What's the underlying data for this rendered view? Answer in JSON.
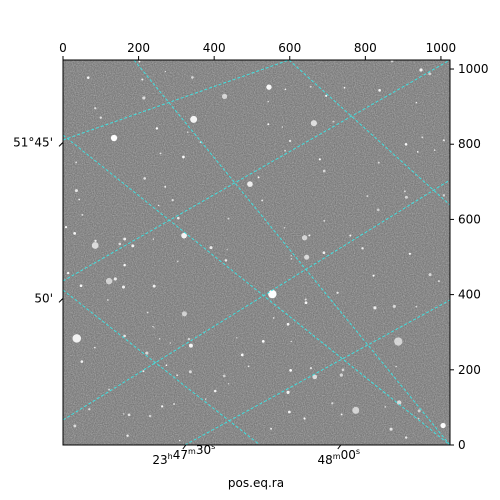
{
  "figure": {
    "xlabel": "pos.eq.ra",
    "pixel_axes": {
      "x_range": [
        0,
        1024
      ],
      "y_range": [
        0,
        1024
      ],
      "top_ticks": [
        0,
        200,
        400,
        600,
        800,
        1000
      ],
      "right_ticks": [
        0,
        200,
        400,
        600,
        800,
        1000
      ]
    },
    "ra_ticks": [
      {
        "x": 325,
        "label_main": "23",
        "sup1": "h",
        "mid": "47",
        "sup2": "m",
        "tail": "30",
        "sup3": "s"
      },
      {
        "x": 735,
        "label_main": "48",
        "sup1": "m",
        "mid": "00",
        "sup2": "s",
        "tail": "",
        "sup3": ""
      }
    ],
    "dec_ticks": [
      {
        "y": 805,
        "label": "51°45'"
      },
      {
        "y": 390,
        "label": "50'"
      }
    ],
    "grid_color": "#40e0e0",
    "image_tint": "#6e6e6e"
  }
}
